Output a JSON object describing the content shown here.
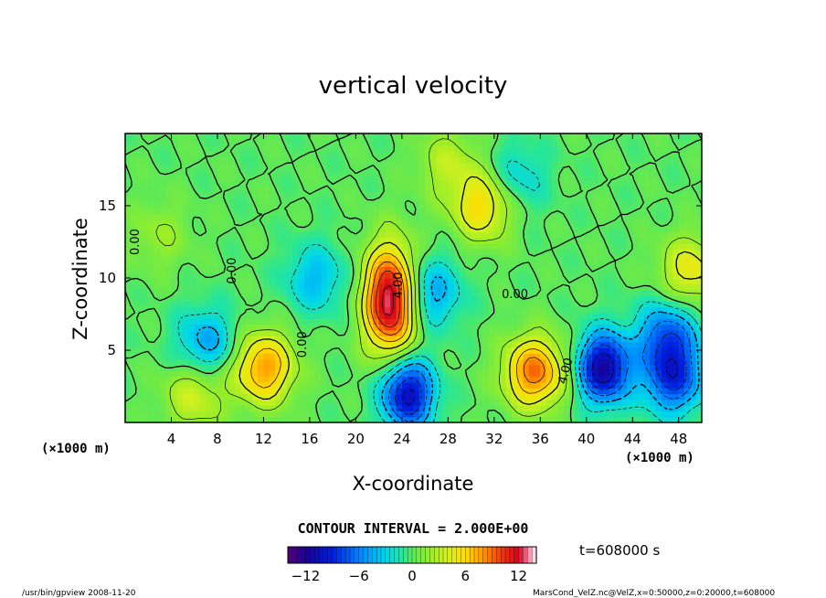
{
  "chart_data": {
    "type": "heatmap",
    "title": "vertical velocity",
    "xlabel": "X-coordinate",
    "ylabel": "Z-coordinate",
    "x_unit": "(×1000 m)",
    "z_unit": "(×1000 m)",
    "xlim": [
      0,
      50
    ],
    "zlim": [
      0,
      20
    ],
    "x_ticks": [
      4,
      8,
      12,
      16,
      20,
      24,
      28,
      32,
      36,
      40,
      44,
      48
    ],
    "z_ticks": [
      5,
      10,
      15
    ],
    "contour_interval_text": "CONTOUR INTERVAL = 2.000E+00",
    "contour_labels": [
      "0.00",
      "0.00",
      "0.00",
      "4.00",
      "0.00",
      "4.00"
    ],
    "colorbar": {
      "min": -14,
      "max": 14,
      "ticks": [
        -12,
        -6,
        0,
        6,
        12
      ]
    },
    "features": [
      {
        "x": 23.0,
        "z": 8.5,
        "value": 14
      },
      {
        "x": 12.0,
        "z": 3.8,
        "value": 8
      },
      {
        "x": 35.5,
        "z": 3.5,
        "value": 9
      },
      {
        "x": 24.5,
        "z": 2.0,
        "value": -11
      },
      {
        "x": 41.5,
        "z": 3.8,
        "value": -12
      },
      {
        "x": 47.5,
        "z": 3.0,
        "value": -8
      },
      {
        "x": 47.0,
        "z": 6.0,
        "value": -7
      },
      {
        "x": 7.0,
        "z": 5.5,
        "value": -5
      },
      {
        "x": 16.5,
        "z": 10.0,
        "value": -4
      },
      {
        "x": 26.5,
        "z": 9.0,
        "value": -5
      },
      {
        "x": 31.0,
        "z": 15.0,
        "value": 6
      },
      {
        "x": 49.0,
        "z": 10.5,
        "value": 5
      },
      {
        "x": 28.0,
        "z": 18.0,
        "value": 3
      },
      {
        "x": 34.0,
        "z": 17.0,
        "value": -3
      },
      {
        "x": 3.0,
        "z": 13.0,
        "value": 2
      },
      {
        "x": 6.0,
        "z": 2.0,
        "value": 4
      }
    ]
  },
  "info": {
    "time_label": "t=608000  s",
    "footer_left": "/usr/bin/gpview   2008-11-20",
    "footer_right": "MarsCond_VelZ.nc@VelZ,x=0:50000,z=0:20000,t=608000"
  }
}
